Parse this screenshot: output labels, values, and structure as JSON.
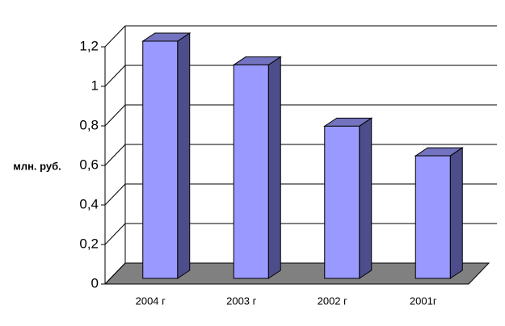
{
  "chart_data": {
    "type": "bar3d",
    "y_axis_label": "млн. руб.",
    "categories": [
      "2004 г",
      "2003 г",
      "2002 г",
      "2001г"
    ],
    "values": [
      1.2,
      1.08,
      0.77,
      0.62
    ],
    "color": "#9999ff",
    "side_color": "#4d4d8c",
    "top_color": "#7373bf",
    "floor_color": "#808080",
    "ylim": [
      0,
      1.2
    ],
    "yticks": [
      0,
      {
        "value": 0.2,
        "label": "0,2"
      },
      {
        "value": 0.4,
        "label": "0,4"
      },
      {
        "value": 0.6,
        "label": "0,6"
      },
      {
        "value": 0.8,
        "label": "0,8"
      },
      1,
      {
        "value": 1.2,
        "label": "1,2"
      }
    ],
    "grid": true
  }
}
